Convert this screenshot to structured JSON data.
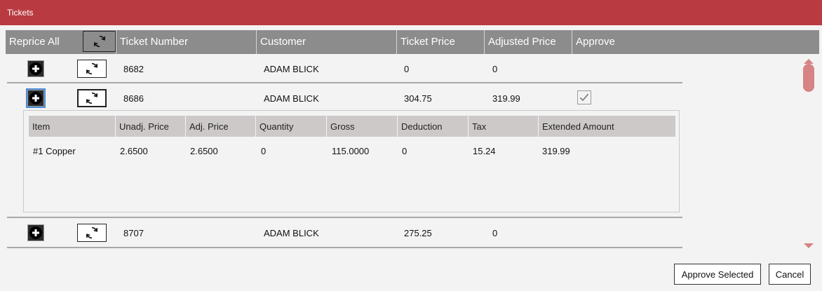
{
  "window": {
    "title": "Tickets"
  },
  "header": {
    "reprice_all": "Reprice All",
    "ticket_number": "Ticket Number",
    "customer": "Customer",
    "ticket_price": "Ticket Price",
    "adjusted_price": "Adjusted Price",
    "approve": "Approve"
  },
  "rows": [
    {
      "ticket_number": "8682",
      "customer": "ADAM BLICK",
      "ticket_price": "0",
      "adjusted_price": "0",
      "approved": false
    },
    {
      "ticket_number": "8686",
      "customer": "ADAM BLICK",
      "ticket_price": "304.75",
      "adjusted_price": "319.99",
      "approved": true
    },
    {
      "ticket_number": "8707",
      "customer": "ADAM BLICK",
      "ticket_price": "275.25",
      "adjusted_price": "0",
      "approved": false
    }
  ],
  "detail": {
    "headers": {
      "item": "Item",
      "unadj_price": "Unadj. Price",
      "adj_price": "Adj. Price",
      "quantity": "Quantity",
      "gross": "Gross",
      "deduction": "Deduction",
      "tax": "Tax",
      "extended_amount": "Extended Amount"
    },
    "rows": [
      {
        "item": "#1 Copper",
        "unadj_price": "2.6500",
        "adj_price": "2.6500",
        "quantity": "0",
        "gross": "115.0000",
        "deduction": "0",
        "tax": "15.24",
        "extended_amount": "319.99"
      }
    ]
  },
  "icons": {
    "expand": "plus-circle-icon",
    "reprice": "refresh-icon",
    "check": "checkmark-icon"
  },
  "buttons": {
    "approve_selected": "Approve Selected",
    "cancel": "Cancel"
  },
  "colors": {
    "title_bar": "#b93a40",
    "header_bg": "#8c8c8c",
    "detail_header_bg": "#cdc9c9",
    "scrollbar": "#d78284"
  }
}
